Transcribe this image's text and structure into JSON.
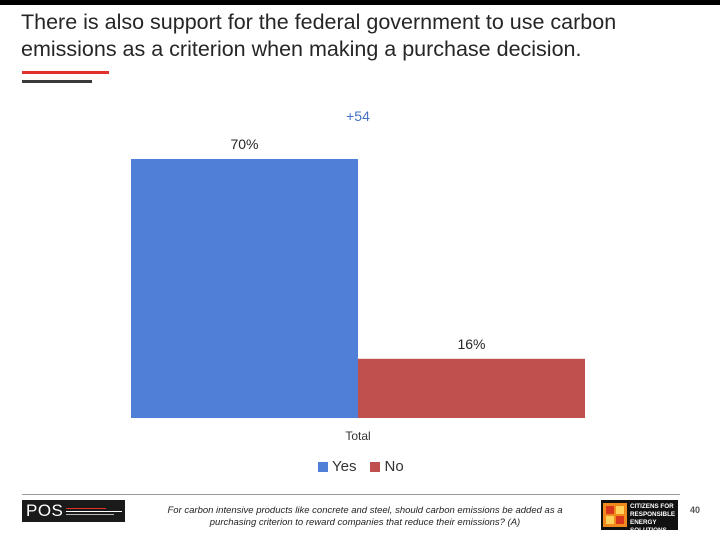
{
  "title": "There is also support for the federal government to use carbon emissions as a criterion when making a purchase decision.",
  "colors": {
    "accent_red": "#e0312a",
    "accent_dark": "#3a3a3a",
    "yes": "#4f7fd6",
    "no": "#c0504d",
    "difference": "#4472c4"
  },
  "chart_data": {
    "type": "bar",
    "categories": [
      "Total"
    ],
    "series": [
      {
        "name": "Yes",
        "values": [
          70
        ],
        "data_labels": [
          "70%"
        ]
      },
      {
        "name": "No",
        "values": [
          16
        ],
        "data_labels": [
          "16%"
        ]
      }
    ],
    "annotation": "+54",
    "ylim": [
      0,
      80
    ],
    "grid": false,
    "legend_position": "bottom"
  },
  "footnote": "For carbon intensive products like concrete and steel, should carbon emissions be added as a purchasing criterion to reward companies that reduce their emissions? (A)",
  "logos": {
    "pos": "POS",
    "crs_lines": [
      "CITIZENS FOR",
      "RESPONSIBLE",
      "ENERGY SOLUTIONS"
    ]
  },
  "page_number": "40"
}
